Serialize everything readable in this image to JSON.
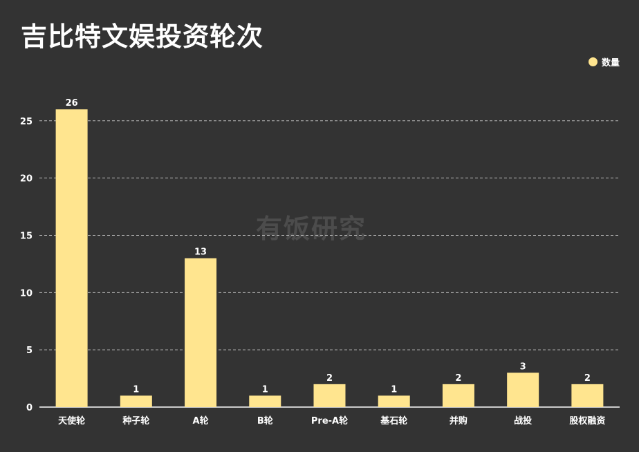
{
  "title": "吉比特文娱投资轮次",
  "watermark": "有饭研究",
  "legend": {
    "label": "数量",
    "color": "#ffe58f"
  },
  "colors": {
    "background": "#333333",
    "bar": "#ffe58f",
    "grid": "#bbbbbb",
    "text": "#ffffff"
  },
  "chart_data": {
    "type": "bar",
    "title": "吉比特文娱投资轮次",
    "xlabel": "",
    "ylabel": "",
    "categories": [
      "天使轮",
      "种子轮",
      "A轮",
      "B轮",
      "Pre-A轮",
      "基石轮",
      "并购",
      "战投",
      "股权融资"
    ],
    "series": [
      {
        "name": "数量",
        "values": [
          26,
          1,
          13,
          1,
          2,
          1,
          2,
          3,
          2
        ]
      }
    ],
    "ylim": [
      0,
      27
    ],
    "yticks": [
      0,
      5,
      10,
      15,
      20,
      25
    ],
    "grid": true,
    "legend_position": "top-right"
  }
}
